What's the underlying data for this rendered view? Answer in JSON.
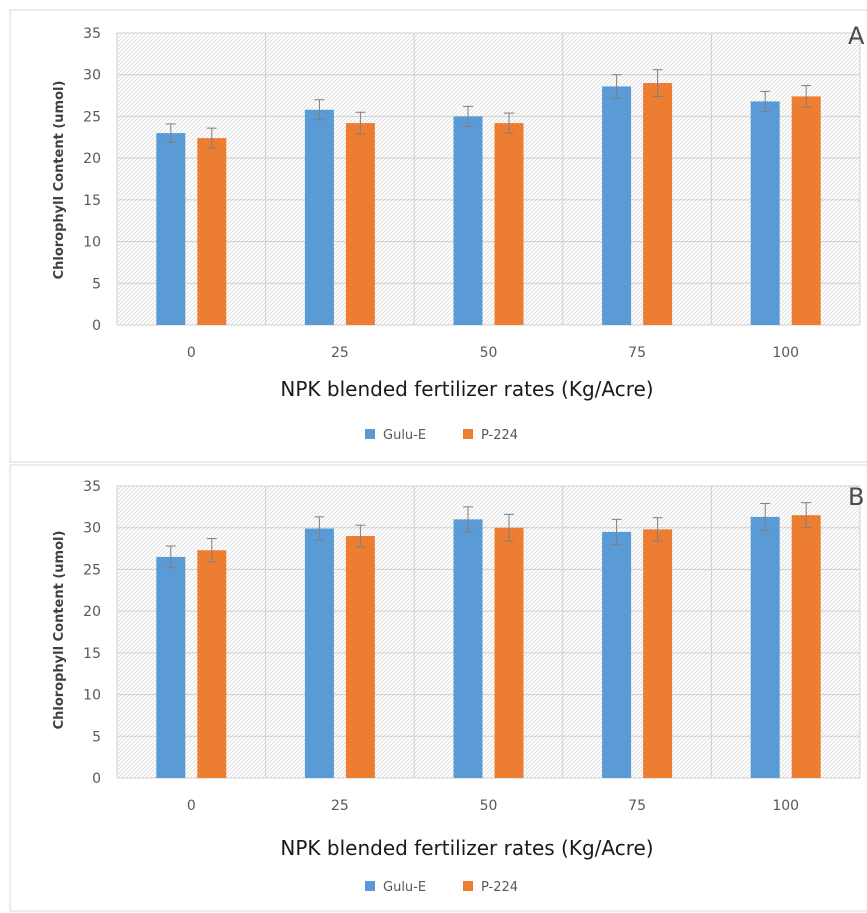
{
  "chart_data": [
    {
      "type": "bar",
      "panel_label": "A",
      "categories": [
        "0",
        "25",
        "50",
        "75",
        "100"
      ],
      "series": [
        {
          "name": "Gulu-E",
          "color": "#5b9bd5",
          "values": [
            23.0,
            25.8,
            25.0,
            28.6,
            26.8
          ],
          "errors": [
            1.1,
            1.2,
            1.2,
            1.4,
            1.2
          ]
        },
        {
          "name": "P-224",
          "color": "#ed7d31",
          "values": [
            22.4,
            24.2,
            24.2,
            29.0,
            27.4
          ],
          "errors": [
            1.2,
            1.3,
            1.2,
            1.6,
            1.3
          ]
        }
      ],
      "xlabel": "NPK blended fertilizer rates (Kg/Acre)",
      "ylabel": "Chlorophyll Content (umol)",
      "ylim": [
        0,
        35
      ],
      "yticks": [
        0,
        5,
        10,
        15,
        20,
        25,
        30,
        35
      ],
      "grid": true,
      "legend_position": "bottom"
    },
    {
      "type": "bar",
      "panel_label": "B",
      "categories": [
        "0",
        "25",
        "50",
        "75",
        "100"
      ],
      "series": [
        {
          "name": "Gulu-E",
          "color": "#5b9bd5",
          "values": [
            26.5,
            29.9,
            31.0,
            29.5,
            31.3
          ],
          "errors": [
            1.3,
            1.4,
            1.5,
            1.5,
            1.6
          ]
        },
        {
          "name": "P-224",
          "color": "#ed7d31",
          "values": [
            27.3,
            29.0,
            30.0,
            29.8,
            31.5
          ],
          "errors": [
            1.4,
            1.3,
            1.6,
            1.4,
            1.5
          ]
        }
      ],
      "xlabel": "NPK blended fertilizer rates (Kg/Acre)",
      "ylabel": "Chlorophyll Content (umol)",
      "ylim": [
        0,
        35
      ],
      "yticks": [
        0,
        5,
        10,
        15,
        20,
        25,
        30,
        35
      ],
      "grid": true,
      "legend_position": "bottom"
    }
  ]
}
